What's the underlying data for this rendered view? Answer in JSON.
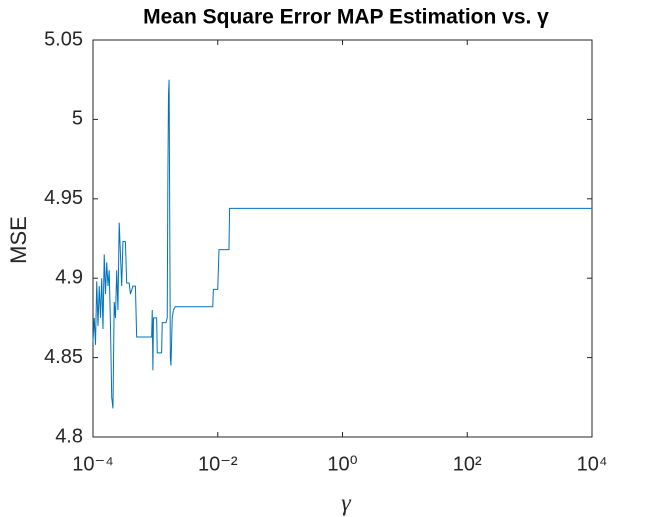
{
  "chart_data": {
    "type": "line",
    "title": "Mean Square Error MAP Estimation vs. γ",
    "x_label": "γ",
    "y_label": "MSE",
    "color": "#0072bd",
    "x_scale": "log",
    "xlim": [
      0.0001,
      10000
    ],
    "xticks": [
      {
        "value": 0.0001,
        "label": "10⁻⁴"
      },
      {
        "value": 0.01,
        "label": "10⁻²"
      },
      {
        "value": 1,
        "label": "10⁰"
      },
      {
        "value": 100,
        "label": "10²"
      },
      {
        "value": 10000,
        "label": "10⁴"
      }
    ],
    "ylim": [
      4.8,
      5.05
    ],
    "yticks": [
      4.8,
      4.85,
      4.9,
      4.95,
      5,
      5.05
    ],
    "grid": false,
    "x": [
      0.0001,
      0.00010471,
      0.00010965,
      0.00011482,
      0.00012023,
      0.00012589,
      0.00013183,
      0.00013804,
      0.00014454,
      0.00015136,
      0.00015849,
      0.00016596,
      0.00017378,
      0.00018197,
      0.00019055,
      0.00019953,
      0.00020893,
      0.00021878,
      0.00022909,
      0.00023988,
      0.00025119,
      0.00026303,
      0.00027542,
      0.0002884,
      0.000302,
      0.00033113,
      0.00034674,
      0.00038019,
      0.00039811,
      0.00043652,
      0.00047863,
      0.00050119,
      0.00087096,
      0.00089125,
      0.00091201,
      0.00093325,
      0.0010471,
      0.0010715,
      0.0012589,
      0.0012882,
      0.0014791,
      0.0015488,
      0.0015849,
      0.0016218,
      0.0016596,
      0.0017378,
      0.0017783,
      0.0018621,
      0.0019498,
      0.0020893,
      0.0083176,
      0.0085114,
      0.01,
      0.010471,
      0.015136,
      0.015488,
      10000
    ],
    "values": [
      4.86,
      4.875,
      4.858,
      4.898,
      4.87,
      4.895,
      4.875,
      4.9,
      4.868,
      4.915,
      4.89,
      4.91,
      4.895,
      4.905,
      4.87,
      4.825,
      4.818,
      4.885,
      4.875,
      4.905,
      4.88,
      4.935,
      4.915,
      4.895,
      4.923,
      4.923,
      4.897,
      4.897,
      4.89,
      4.895,
      4.895,
      4.863,
      4.863,
      4.88,
      4.842,
      4.875,
      4.875,
      4.853,
      4.853,
      4.872,
      4.872,
      4.875,
      4.96,
      5.015,
      5.025,
      4.85,
      4.845,
      4.875,
      4.88,
      4.882,
      4.882,
      4.893,
      4.893,
      4.918,
      4.918,
      4.944,
      4.944
    ]
  }
}
